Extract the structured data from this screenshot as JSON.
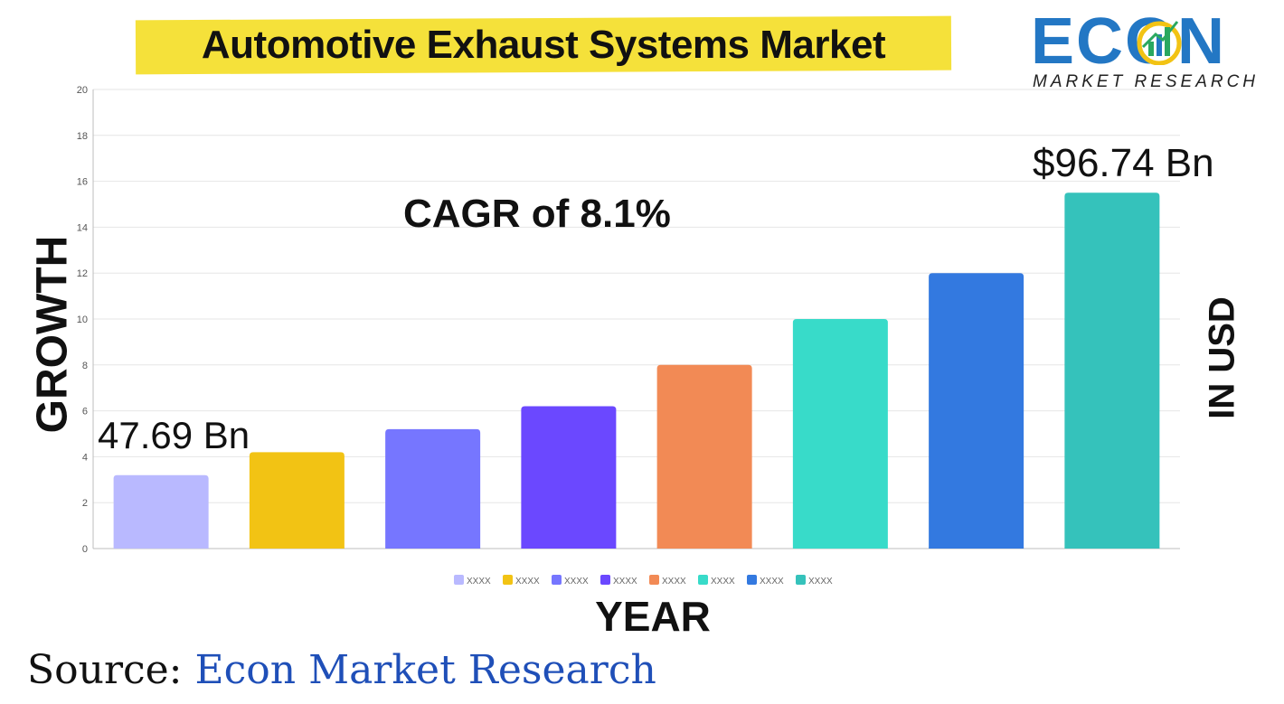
{
  "header": {
    "title": "Automotive Exhaust Systems Market"
  },
  "logo": {
    "word": "ECON",
    "subtitle": "MARKET RESEARCH",
    "icon": "bar-chart-globe-icon"
  },
  "annotations": {
    "cagr": "CAGR of 8.1%",
    "start_value": "47.69 Bn",
    "end_value": "$96.74 Bn"
  },
  "source": {
    "prefix": "Source:",
    "name": " Econ Market Research"
  },
  "colors": {
    "title_highlight": "#f5e13a",
    "logo_blue": "#2377c4",
    "source_blue": "#1f4fb8"
  },
  "chart_data": {
    "type": "bar",
    "title": "Automotive Exhaust Systems Market",
    "xlabel": "YEAR",
    "ylabel": "GROWTH",
    "y2label": "IN USD",
    "ylim": [
      0,
      20
    ],
    "yticks": [
      0,
      2,
      4,
      6,
      8,
      10,
      12,
      14,
      16,
      18,
      20
    ],
    "grid": true,
    "legend_position": "bottom",
    "categories": [
      "XXXX",
      "XXXX",
      "XXXX",
      "XXXX",
      "XXXX",
      "XXXX",
      "XXXX",
      "XXXX"
    ],
    "values": [
      3.2,
      4.2,
      5.2,
      6.2,
      8.0,
      10.0,
      12.0,
      15.5
    ],
    "colors": [
      "#b9b9ff",
      "#f2c314",
      "#7676ff",
      "#6b48ff",
      "#f28a55",
      "#38dbc9",
      "#3379e0",
      "#35c2bb"
    ]
  }
}
